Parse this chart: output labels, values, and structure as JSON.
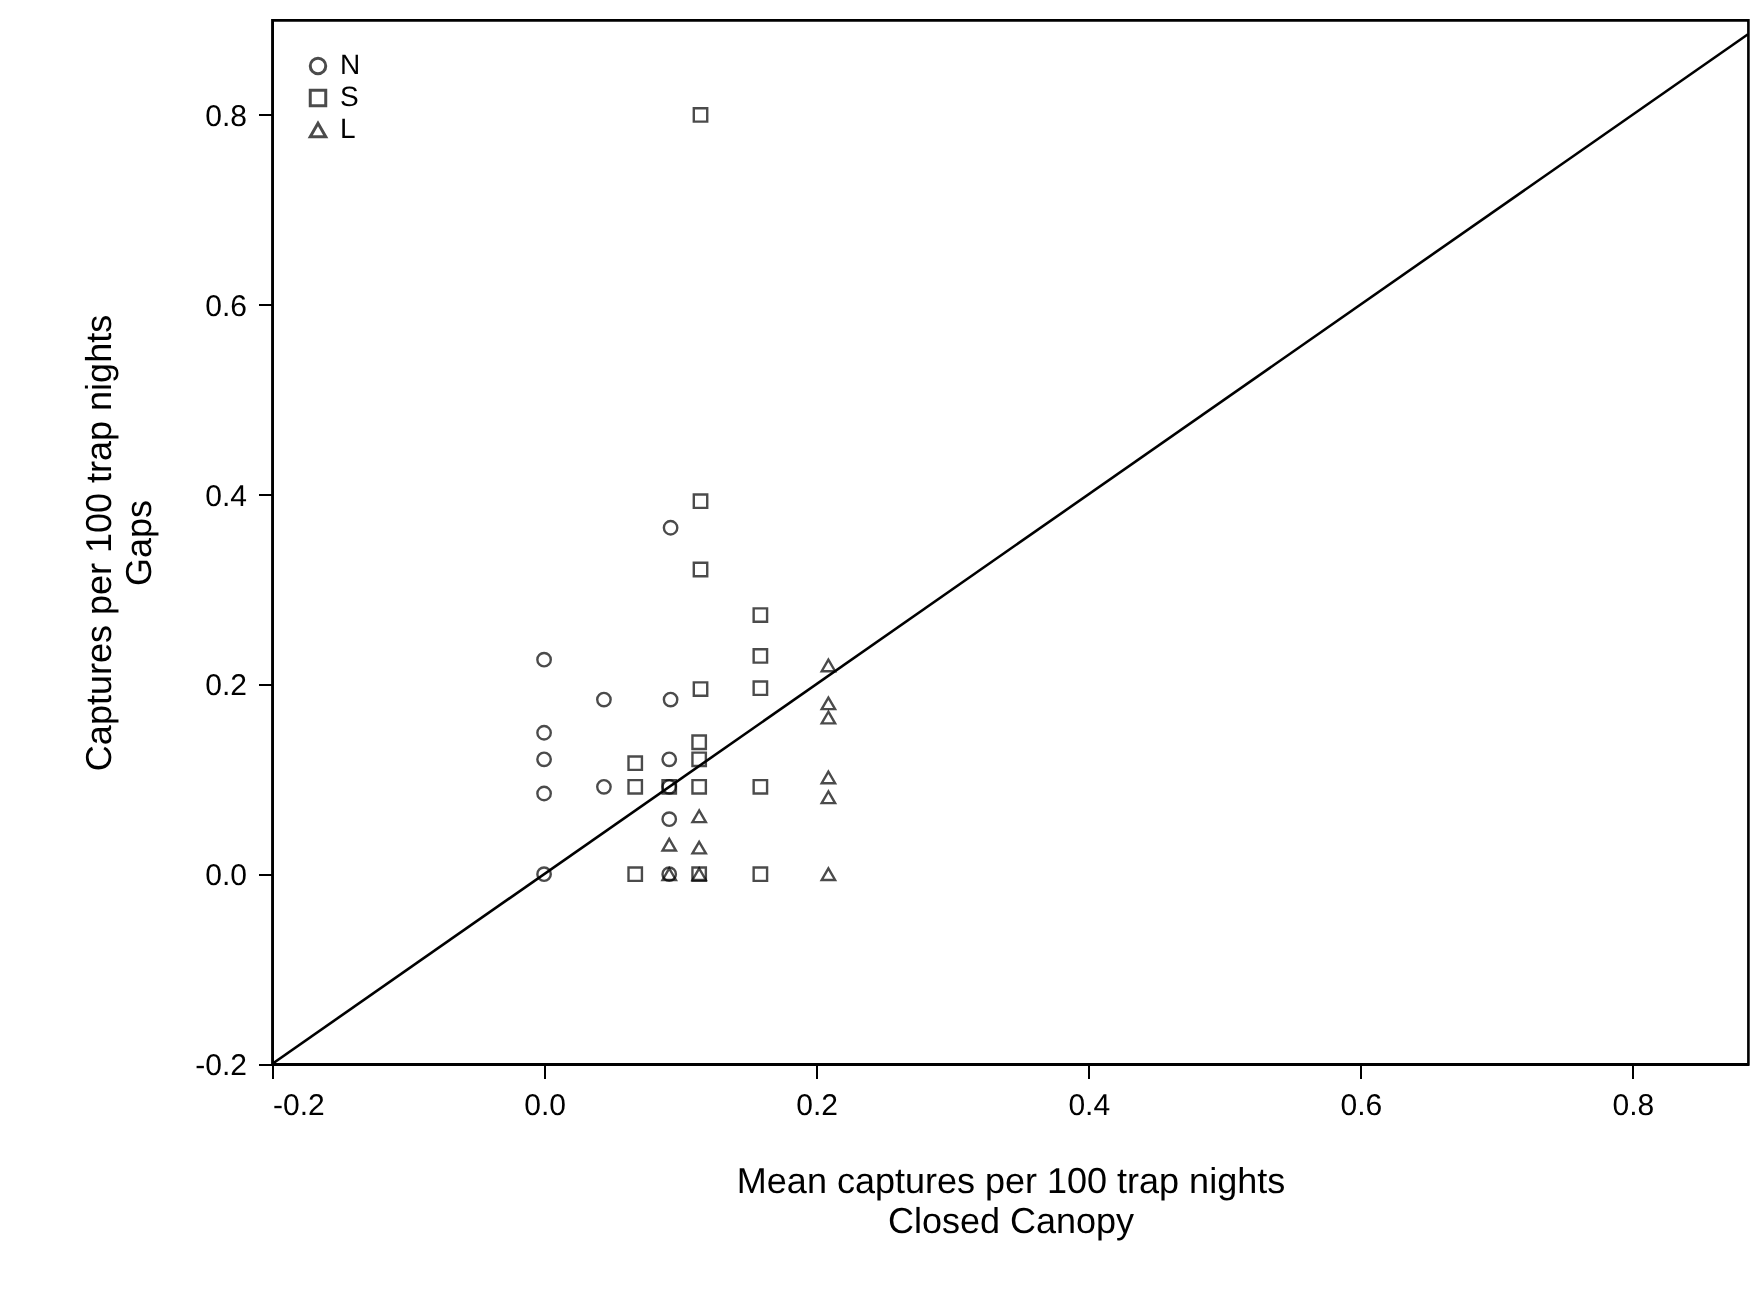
{
  "chart_data": {
    "type": "scatter",
    "xlabel": "Mean captures per 100 trap nights\nClosed Canopy",
    "ylabel": "Captures per 100 trap nights\nGaps",
    "xlim": [
      -0.2,
      0.885
    ],
    "ylim": [
      -0.2,
      0.9
    ],
    "xticks": [
      {
        "value": -0.2,
        "label": "-0.2"
      },
      {
        "value": 0,
        "label": "0.0"
      },
      {
        "value": 0.2,
        "label": "0.2"
      },
      {
        "value": 0.4,
        "label": "0.4"
      },
      {
        "value": 0.6,
        "label": "0.6"
      },
      {
        "value": 0.8,
        "label": "0.8"
      }
    ],
    "yticks": [
      {
        "value": -0.2,
        "label": "-0.2"
      },
      {
        "value": 0,
        "label": "0.0"
      },
      {
        "value": 0.2,
        "label": "0.2"
      },
      {
        "value": 0.4,
        "label": "0.4"
      },
      {
        "value": 0.6,
        "label": "0.6"
      },
      {
        "value": 0.8,
        "label": "0.8"
      }
    ],
    "grid": false,
    "legend": "top left",
    "series": [
      {
        "name": "N",
        "color": "#000000",
        "marker": "circle",
        "x": [
          0,
          0.044,
          0.093,
          0,
          0,
          0,
          0.044,
          0.092,
          0.092,
          0.092,
          0,
          0.092,
          0.093
        ],
        "values": [
          0.226,
          0.184,
          0.184,
          0.149,
          0.121,
          0.085,
          0.092,
          0.121,
          0.092,
          0.058,
          0,
          0,
          0.365
        ]
      },
      {
        "name": "S",
        "color": "#000000",
        "marker": "square",
        "x": [
          0.115,
          0.159,
          0.159,
          0.159,
          0.067,
          0.067,
          0.092,
          0.114,
          0.114,
          0.114,
          0.159,
          0.067,
          0.114,
          0.159,
          0.115,
          0.115,
          0.115
        ],
        "values": [
          0.195,
          0.273,
          0.23,
          0.196,
          0.092,
          0.117,
          0.092,
          0.139,
          0.121,
          0.092,
          0.092,
          0,
          0,
          0,
          0.393,
          0.321,
          0.8
        ]
      },
      {
        "name": "L",
        "color": "#000000",
        "marker": "triangle",
        "x": [
          0.209,
          0.209,
          0.209,
          0.092,
          0.114,
          0.114,
          0.209,
          0.209,
          0.092,
          0.114,
          0.209
        ],
        "values": [
          0.22,
          0.18,
          0.165,
          0.031,
          0.061,
          0.028,
          0.102,
          0.081,
          0,
          0,
          0
        ]
      },
      {
        "type": "line",
        "color": "#000000",
        "line_style": "solid",
        "x": [
          -0.2,
          0.885
        ],
        "values": [
          -0.2,
          0.885
        ]
      }
    ]
  }
}
